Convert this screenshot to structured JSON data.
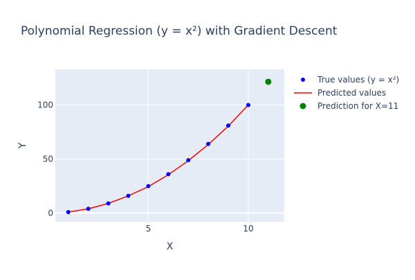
{
  "chart_data": {
    "type": "scatter",
    "title": "Polynomial Regression (y = x²) with Gradient Descent",
    "xlabel": "X",
    "ylabel": "Y",
    "xlim": [
      0.35,
      11.8
    ],
    "ylim": [
      -8,
      133
    ],
    "x_ticks": [
      5,
      10
    ],
    "y_ticks": [
      0,
      50,
      100
    ],
    "grid": true,
    "legend_position": "right",
    "colors": {
      "plot_background": "#e5ecf6",
      "grid": "#ffffff",
      "text": "#2a3f5f"
    },
    "series": [
      {
        "name": "True values (y =  x²)",
        "mode": "markers",
        "color": "#0000ff",
        "x": [
          1,
          2,
          3,
          4,
          5,
          6,
          7,
          8,
          9,
          10
        ],
        "y": [
          1,
          4,
          9,
          16,
          25,
          36,
          49,
          64,
          81,
          100
        ]
      },
      {
        "name": "Predicted values",
        "mode": "lines",
        "color": "#ff0000",
        "x": [
          1,
          2,
          3,
          4,
          5,
          6,
          7,
          8,
          9,
          10
        ],
        "y": [
          1,
          4,
          9,
          16,
          24.5,
          35.5,
          48.5,
          63.5,
          80.5,
          100
        ]
      },
      {
        "name": "Prediction for X=11",
        "mode": "markers",
        "color": "#008000",
        "x": [
          11
        ],
        "y": [
          121.5
        ]
      }
    ]
  }
}
